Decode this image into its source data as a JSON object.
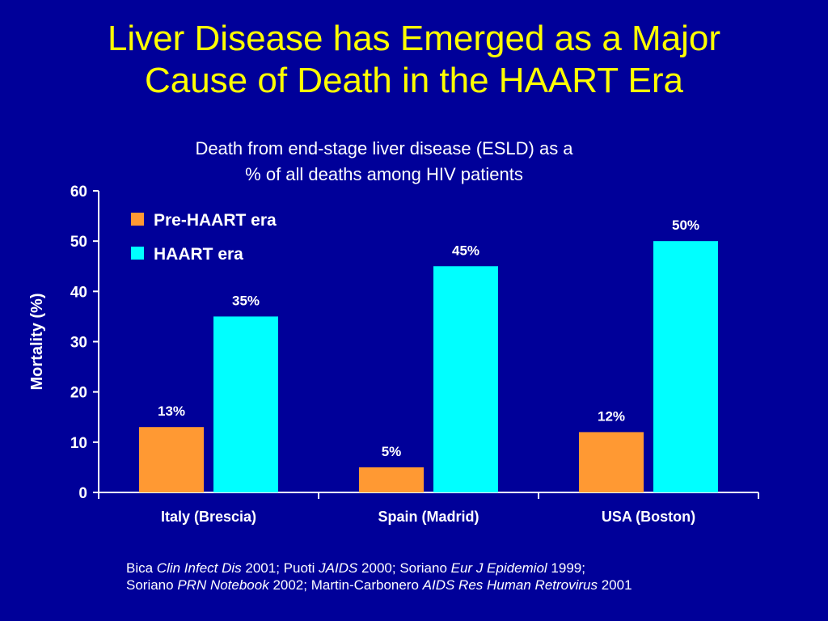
{
  "slide": {
    "title_line1": "Liver Disease has Emerged as a Major",
    "title_line2": "Cause of Death in the HAART Era"
  },
  "chart_data": {
    "type": "bar",
    "title": "Death from end-stage liver disease (ESLD) as a % of all deaths among HIV patients",
    "title_line1": "Death from end-stage liver disease (ESLD) as a",
    "title_line2": "% of all deaths among HIV patients",
    "xlabel": "",
    "ylabel": "Mortality (%)",
    "ylim": [
      0,
      60
    ],
    "yticks": [
      0,
      10,
      20,
      30,
      40,
      50,
      60
    ],
    "categories": [
      "Italy (Brescia)",
      "Spain (Madrid)",
      "USA (Boston)"
    ],
    "series": [
      {
        "name": "Pre-HAART era",
        "color": "#ff9933",
        "values": [
          13,
          5,
          12
        ],
        "labels": [
          "13%",
          "5%",
          "12%"
        ]
      },
      {
        "name": "HAART era",
        "color": "#00ffff",
        "values": [
          35,
          45,
          50
        ],
        "labels": [
          "35%",
          "45%",
          "50%"
        ]
      }
    ],
    "legend_position": "top-left",
    "grid": false
  },
  "footnote": {
    "line1": [
      {
        "text": "Bica ",
        "italic": false
      },
      {
        "text": "Clin Infect Dis",
        "italic": true
      },
      {
        "text": " 2001; Puoti ",
        "italic": false
      },
      {
        "text": "JAIDS",
        "italic": true
      },
      {
        "text": " 2000; Soriano ",
        "italic": false
      },
      {
        "text": "Eur J Epidemiol",
        "italic": true
      },
      {
        "text": " 1999;",
        "italic": false
      }
    ],
    "line2": [
      {
        "text": "Soriano ",
        "italic": false
      },
      {
        "text": "PRN Notebook",
        "italic": true
      },
      {
        "text": " 2002; Martin-Carbonero ",
        "italic": false
      },
      {
        "text": "AIDS Res Human Retrovirus",
        "italic": true
      },
      {
        "text": " 2001",
        "italic": false
      }
    ]
  }
}
